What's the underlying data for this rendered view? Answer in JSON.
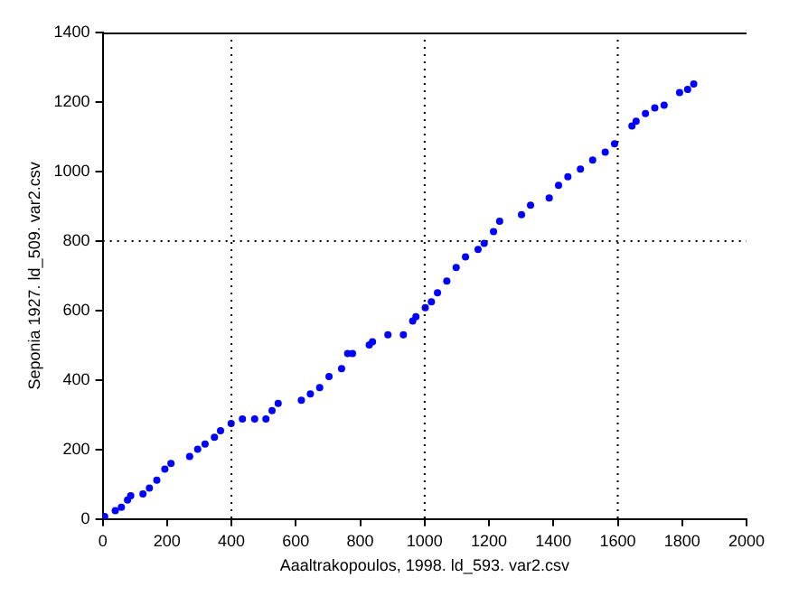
{
  "chart_data": {
    "type": "scatter",
    "xlabel": "Aaaltrakopoulos, 1998. ld_593. var2.csv",
    "ylabel": "Seponia 1927. ld_509. var2.csv",
    "xlim": [
      0,
      2000
    ],
    "xticks": [
      0,
      200,
      400,
      600,
      800,
      1000,
      1200,
      1400,
      1600,
      1800,
      2000
    ],
    "ylim": [
      0,
      1400
    ],
    "yticks": [
      0,
      200,
      400,
      600,
      800,
      1000,
      1200,
      1400
    ],
    "grid": false,
    "legend": false,
    "marker": "circle",
    "ref_lines": [
      {
        "axis": "x",
        "value": 400,
        "color": "#000000",
        "line_style": "dotted"
      },
      {
        "axis": "x",
        "value": 1000,
        "color": "#000000",
        "line_style": "dotted"
      },
      {
        "axis": "x",
        "value": 1600,
        "color": "#000000",
        "line_style": "dotted"
      },
      {
        "axis": "y",
        "value": 800,
        "color": "#000000",
        "line_style": "dotted"
      }
    ],
    "series": [
      {
        "color": "#0000ff",
        "x": [
          6,
          39,
          58,
          77,
          87,
          125,
          145,
          168,
          193,
          212,
          270,
          295,
          318,
          347,
          366,
          399,
          434,
          472,
          507,
          526,
          545,
          617,
          645,
          674,
          703,
          742,
          761,
          776,
          828,
          838,
          886,
          934,
          963,
          973,
          1002,
          1021,
          1040,
          1069,
          1098,
          1127,
          1166,
          1185,
          1214,
          1233,
          1301,
          1329,
          1387,
          1416,
          1445,
          1484,
          1522,
          1561,
          1590,
          1644,
          1657,
          1686,
          1715,
          1744,
          1792,
          1817,
          1836
        ],
        "values": [
          7,
          24,
          34,
          55,
          67,
          72,
          89,
          112,
          144,
          160,
          180,
          201,
          216,
          235,
          254,
          275,
          288,
          288,
          288,
          312,
          333,
          342,
          360,
          378,
          410,
          433,
          476,
          476,
          501,
          510,
          530,
          530,
          570,
          582,
          608,
          625,
          651,
          685,
          724,
          754,
          776,
          793,
          827,
          857,
          876,
          903,
          924,
          960,
          985,
          1007,
          1033,
          1056,
          1080,
          1131,
          1145,
          1167,
          1183,
          1191,
          1227,
          1236,
          1252
        ]
      }
    ]
  }
}
